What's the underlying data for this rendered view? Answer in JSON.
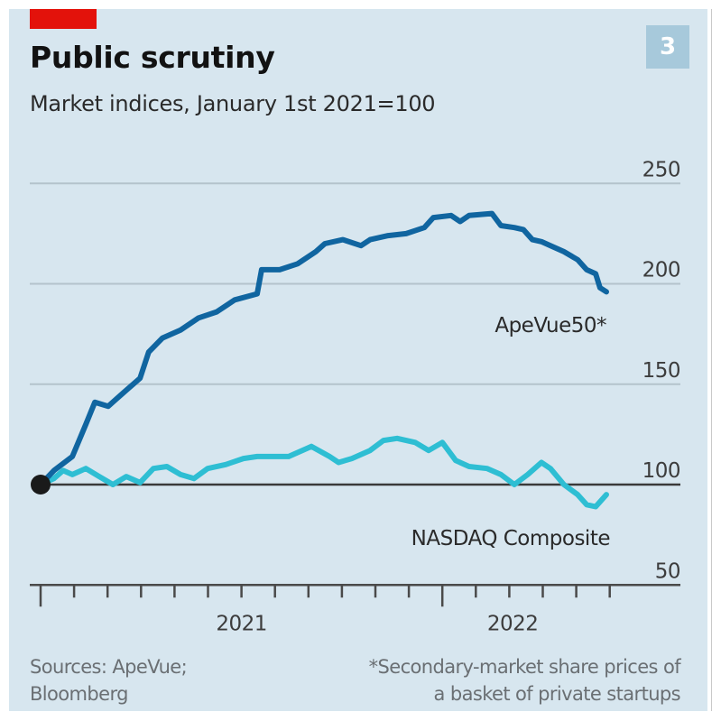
{
  "header": {
    "title": "Public scrutiny",
    "subtitle": "Market indices, January 1st 2021=100",
    "chart_number": "3"
  },
  "footer": {
    "sources_line1": "Sources: ApeVue;",
    "sources_line2": "Bloomberg",
    "note_line1": "*Secondary-market share prices of",
    "note_line2": "a basket of private startups"
  },
  "colors": {
    "background": "#d7e6ef",
    "brand_red": "#e3120b",
    "apevue": "#1065a0",
    "nasdaq": "#2ebed3",
    "baseline": "#3a3a3a",
    "grid": "#b4c3cc",
    "badge": "#a7c9db"
  },
  "chart_data": {
    "type": "line",
    "title": "Public scrutiny",
    "subtitle": "Market indices, January 1st 2021=100",
    "xlabel": "",
    "ylabel": "",
    "x_unit": "months since January 1st 2021",
    "xlim": [
      0,
      17.5
    ],
    "ylim": [
      50,
      250
    ],
    "yticks": [
      50,
      100,
      150,
      200,
      250
    ],
    "ytick_labels": [
      "50",
      "100",
      "150",
      "200",
      "250"
    ],
    "y_axis_position": "right",
    "grid": true,
    "baseline": 100,
    "xticks_minor_months": [
      0,
      1,
      2,
      3,
      4,
      5,
      6,
      7,
      8,
      9,
      10,
      11,
      12,
      13,
      14,
      15,
      16,
      17
    ],
    "xticks_major_months": [
      0,
      12
    ],
    "x_year_labels": [
      {
        "label": "2021",
        "center_month": 6
      },
      {
        "label": "2022",
        "center_month": 14.1
      }
    ],
    "start_marker": {
      "x": 0,
      "y": 100
    },
    "series": [
      {
        "name": "ApeVue50*",
        "label": "ApeVue50*",
        "color": "#1065a0",
        "x": [
          0,
          0.4,
          0.95,
          1.35,
          1.62,
          2.02,
          2.56,
          2.97,
          3.23,
          3.64,
          4.18,
          4.72,
          5.26,
          5.8,
          6.47,
          6.6,
          7.14,
          7.68,
          8.22,
          8.49,
          9.03,
          9.57,
          9.84,
          10.38,
          10.92,
          11.46,
          11.73,
          12.26,
          12.53,
          12.8,
          13.48,
          13.75,
          14.15,
          14.42,
          14.69,
          14.96,
          15.23,
          15.63,
          16.04,
          16.31,
          16.58,
          16.71,
          16.9
        ],
        "values": [
          100,
          107,
          114,
          130,
          141,
          139,
          147,
          153,
          166,
          173,
          177,
          183,
          186,
          192,
          195,
          207,
          207,
          210,
          216,
          220,
          222,
          219,
          222,
          224,
          225,
          228,
          233,
          234,
          231,
          234,
          235,
          229,
          228,
          227,
          222,
          221,
          219,
          216,
          212,
          207,
          205,
          198,
          196
        ]
      },
      {
        "name": "NASDAQ Composite",
        "label": "NASDAQ Composite",
        "color": "#2ebed3",
        "x": [
          0,
          0.4,
          0.67,
          0.95,
          1.35,
          1.75,
          2.16,
          2.56,
          2.97,
          3.37,
          3.77,
          4.18,
          4.58,
          4.99,
          5.53,
          6.06,
          6.47,
          6.87,
          7.41,
          8.09,
          8.63,
          8.9,
          9.3,
          9.84,
          10.24,
          10.65,
          11.19,
          11.59,
          12.0,
          12.4,
          12.8,
          13.34,
          13.75,
          14.15,
          14.55,
          14.96,
          15.23,
          15.63,
          16.04,
          16.31,
          16.58,
          16.9
        ],
        "values": [
          100,
          103,
          107,
          105,
          108,
          104,
          100,
          104,
          101,
          108,
          109,
          105,
          103,
          108,
          110,
          113,
          114,
          114,
          114,
          119,
          114,
          111,
          113,
          117,
          122,
          123,
          121,
          117,
          121,
          112,
          109,
          108,
          105,
          100,
          105,
          111,
          108,
          100,
          95,
          90,
          89,
          95
        ]
      }
    ]
  }
}
